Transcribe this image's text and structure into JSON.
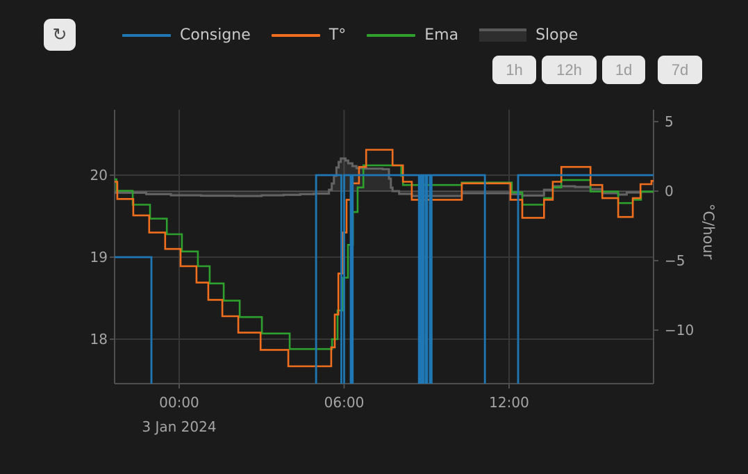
{
  "toolbar": {
    "refresh_icon": "↻",
    "ranges": [
      "1h",
      "12h",
      "1d",
      "7d"
    ]
  },
  "legend": {
    "items": [
      {
        "label": "Consigne",
        "color": "#1f77b4",
        "type": "line"
      },
      {
        "label": "T°",
        "color": "#f06e1d",
        "type": "line"
      },
      {
        "label": "Ema",
        "color": "#2da02d",
        "type": "line"
      },
      {
        "label": "Slope",
        "color": "#5a5a5a",
        "type": "area",
        "fill": "#2e2e2e"
      }
    ]
  },
  "chart_data": {
    "type": "line",
    "subtype": "step-after",
    "grid": true,
    "legend_position": "top",
    "x_axis": {
      "tick_labels": [
        "00:00",
        "06:00",
        "12:00"
      ],
      "tick_hours": [
        0,
        6,
        12
      ],
      "date_label": "3 Jan 2024",
      "range_hours": [
        -2.349,
        17.255
      ]
    },
    "y_left": {
      "tick_labels": [
        "20",
        "19",
        "18"
      ],
      "ticks": [
        20,
        19,
        18
      ],
      "range": [
        17.458,
        20.797
      ]
    },
    "y_right": {
      "label": "°C/hour",
      "tick_labels": [
        "5",
        "0",
        "−5",
        "−10"
      ],
      "ticks": [
        5,
        0,
        -5,
        -10
      ],
      "range": [
        -13.85,
        5.85
      ],
      "zeroline": true
    },
    "series": [
      {
        "name": "Consigne",
        "axis": "left",
        "color": "#1f77b4",
        "width": 2.8,
        "mode": "steps",
        "points": [
          [
            -2.349,
            19
          ],
          [
            -1.01,
            17
          ],
          [
            4.98,
            20
          ],
          [
            5.9,
            17
          ],
          [
            6.0,
            20
          ],
          [
            6.24,
            17
          ],
          [
            6.31,
            20
          ],
          [
            8.72,
            17
          ],
          [
            8.77,
            20
          ],
          [
            8.84,
            17
          ],
          [
            8.89,
            20
          ],
          [
            8.97,
            17
          ],
          [
            9.02,
            20
          ],
          [
            9.12,
            17
          ],
          [
            9.18,
            20
          ],
          [
            11.12,
            17
          ],
          [
            12.33,
            20
          ]
        ]
      },
      {
        "name": "T°",
        "axis": "left",
        "color": "#f06e1d",
        "width": 2.6,
        "mode": "steps",
        "points": [
          [
            -2.349,
            19.92
          ],
          [
            -2.25,
            19.71
          ],
          [
            -1.67,
            19.51
          ],
          [
            -1.09,
            19.3
          ],
          [
            -0.51,
            19.1
          ],
          [
            0.05,
            18.89
          ],
          [
            0.63,
            18.69
          ],
          [
            1.06,
            18.48
          ],
          [
            1.57,
            18.28
          ],
          [
            2.15,
            18.08
          ],
          [
            2.96,
            17.87
          ],
          [
            3.97,
            17.67
          ],
          [
            5.53,
            17.9
          ],
          [
            5.66,
            18.3
          ],
          [
            5.79,
            18.8
          ],
          [
            5.94,
            19.3
          ],
          [
            6.09,
            19.7
          ],
          [
            6.24,
            19.9
          ],
          [
            6.54,
            20.1
          ],
          [
            6.8,
            20.31
          ],
          [
            7.76,
            20.12
          ],
          [
            8.14,
            19.92
          ],
          [
            8.46,
            19.7
          ],
          [
            10.28,
            19.9
          ],
          [
            12.05,
            19.7
          ],
          [
            12.48,
            19.48
          ],
          [
            13.27,
            19.7
          ],
          [
            13.59,
            19.92
          ],
          [
            13.9,
            20.1
          ],
          [
            14.96,
            19.88
          ],
          [
            15.39,
            19.72
          ],
          [
            15.97,
            19.49
          ],
          [
            16.5,
            19.72
          ],
          [
            16.78,
            19.89
          ],
          [
            17.18,
            19.93
          ]
        ]
      },
      {
        "name": "Ema",
        "axis": "left",
        "color": "#2da02d",
        "width": 2.6,
        "mode": "steps",
        "points": [
          [
            -2.349,
            19.95
          ],
          [
            -2.28,
            19.81
          ],
          [
            -1.69,
            19.64
          ],
          [
            -1.06,
            19.47
          ],
          [
            -0.45,
            19.28
          ],
          [
            0.1,
            19.07
          ],
          [
            0.68,
            18.89
          ],
          [
            1.11,
            18.68
          ],
          [
            1.62,
            18.47
          ],
          [
            2.2,
            18.27
          ],
          [
            3.01,
            18.07
          ],
          [
            4.02,
            17.88
          ],
          [
            5.56,
            18.0
          ],
          [
            5.76,
            18.35
          ],
          [
            5.96,
            18.75
          ],
          [
            6.14,
            19.15
          ],
          [
            6.32,
            19.55
          ],
          [
            6.49,
            19.85
          ],
          [
            6.7,
            20.12
          ],
          [
            8.08,
            19.99
          ],
          [
            8.14,
            19.88
          ],
          [
            10.28,
            19.91
          ],
          [
            12.1,
            19.79
          ],
          [
            12.48,
            19.64
          ],
          [
            13.27,
            19.72
          ],
          [
            13.59,
            19.85
          ],
          [
            13.9,
            19.94
          ],
          [
            14.96,
            19.8
          ],
          [
            15.97,
            19.66
          ],
          [
            16.5,
            19.7
          ],
          [
            16.8,
            19.8
          ]
        ]
      },
      {
        "name": "Slope",
        "axis": "right",
        "color": "#646464",
        "width": 3,
        "mode": "steps",
        "fill_to_zero": true,
        "fill": "rgba(255,255,255,0.08)",
        "points": [
          [
            -2.349,
            -0.12
          ],
          [
            -1.2,
            -0.22
          ],
          [
            -0.3,
            -0.3
          ],
          [
            0.8,
            -0.33
          ],
          [
            2.0,
            -0.35
          ],
          [
            3.0,
            -0.3
          ],
          [
            3.8,
            -0.27
          ],
          [
            4.4,
            -0.22
          ],
          [
            4.9,
            -0.18
          ],
          [
            5.45,
            0.1
          ],
          [
            5.55,
            0.55
          ],
          [
            5.63,
            1.1
          ],
          [
            5.72,
            1.7
          ],
          [
            5.8,
            2.1
          ],
          [
            5.88,
            2.35
          ],
          [
            6.05,
            2.2
          ],
          [
            6.15,
            2.0
          ],
          [
            6.3,
            1.8
          ],
          [
            6.45,
            1.65
          ],
          [
            6.7,
            1.62
          ],
          [
            7.4,
            1.58
          ],
          [
            7.63,
            0.9
          ],
          [
            7.7,
            0.25
          ],
          [
            7.76,
            0.0
          ],
          [
            8.0,
            -0.2
          ],
          [
            8.46,
            -0.35
          ],
          [
            10.28,
            -0.15
          ],
          [
            12.05,
            -0.22
          ],
          [
            12.48,
            -0.32
          ],
          [
            13.27,
            0.1
          ],
          [
            13.59,
            0.35
          ],
          [
            14.4,
            0.3
          ],
          [
            14.96,
            0.15
          ],
          [
            15.39,
            -0.15
          ],
          [
            15.97,
            -0.25
          ],
          [
            16.28,
            -0.1
          ],
          [
            16.8,
            -0.05
          ]
        ]
      }
    ],
    "colors": {
      "background": "#1b1b1b",
      "gridline": "#383838",
      "zeroline": "#454545",
      "axis_line": "#4f4f4f",
      "tick_text": "#a5a5a5",
      "legend_text": "#c9c9c9"
    }
  }
}
